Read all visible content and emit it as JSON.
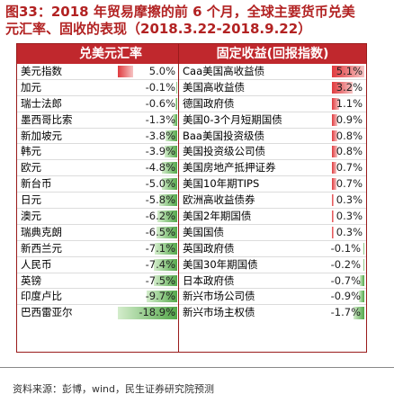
{
  "title": {
    "line1": "图33：2018 年贸易摩擦的前 6 个月，全球主要货币兑美",
    "line2": "元汇率、固收的表现（2018.3.22-2018.9.22）"
  },
  "colors": {
    "header": "#c0282d",
    "border": "#9a1b1b",
    "pos_dark": "#e03a3e",
    "pos_light": "#f6c3c3",
    "neg_dark": "#54a84a",
    "neg_light": "#d4edcc"
  },
  "source": "资料来源：彭博，wind，民生证券研究院预测",
  "chart_data": [
    {
      "type": "table",
      "header": "兑美元汇率",
      "unit": "%",
      "rows": [
        {
          "name": "美元指数",
          "value": 5.0,
          "label": "5.0%"
        },
        {
          "name": "加元",
          "value": -0.1,
          "label": "-0.1%"
        },
        {
          "name": "瑞士法郎",
          "value": -0.6,
          "label": "-0.6%"
        },
        {
          "name": "墨西哥比索",
          "value": -1.3,
          "label": "-1.3%"
        },
        {
          "name": "新加坡元",
          "value": -3.8,
          "label": "-3.8%"
        },
        {
          "name": "韩元",
          "value": -3.9,
          "label": "-3.9%"
        },
        {
          "name": "欧元",
          "value": -4.8,
          "label": "-4.8%"
        },
        {
          "name": "新台币",
          "value": -5.0,
          "label": "-5.0%"
        },
        {
          "name": "日元",
          "value": -5.8,
          "label": "-5.8%"
        },
        {
          "name": "澳元",
          "value": -6.2,
          "label": "-6.2%"
        },
        {
          "name": "瑞典克朗",
          "value": -6.5,
          "label": "-6.5%"
        },
        {
          "name": "新西兰元",
          "value": -7.1,
          "label": "-7.1%"
        },
        {
          "name": "人民币",
          "value": -7.4,
          "label": "-7.4%"
        },
        {
          "name": "英镑",
          "value": -7.5,
          "label": "-7.5%"
        },
        {
          "name": "印度卢比",
          "value": -9.7,
          "label": "-9.7%"
        },
        {
          "name": "巴西雷亚尔",
          "value": -18.9,
          "label": "-18.9%"
        }
      ]
    },
    {
      "type": "table",
      "header": "固定收益(回报指数)",
      "unit": "%",
      "rows": [
        {
          "name": "Caa美国高收益债",
          "value": 5.1,
          "label": "5.1%"
        },
        {
          "name": "美国高收益债",
          "value": 3.2,
          "label": "3.2%"
        },
        {
          "name": "德国政府债",
          "value": 1.1,
          "label": "1.1%"
        },
        {
          "name": "美国0-3个月短期国债",
          "value": 0.9,
          "label": "0.9%"
        },
        {
          "name": "Baa美国投资级债",
          "value": 0.8,
          "label": "0.8%"
        },
        {
          "name": "美国投资级公司债",
          "value": 0.8,
          "label": "0.8%"
        },
        {
          "name": "美国房地产抵押证券",
          "value": 0.7,
          "label": "0.7%"
        },
        {
          "name": "美国10年期TIPS",
          "value": 0.7,
          "label": "0.7%"
        },
        {
          "name": "欧洲高收益债券",
          "value": 0.3,
          "label": "0.3%"
        },
        {
          "name": "美国2年期国债",
          "value": 0.3,
          "label": "0.3%"
        },
        {
          "name": "美国国债",
          "value": 0.3,
          "label": "0.3%"
        },
        {
          "name": "英国政府债",
          "value": -0.1,
          "label": "-0.1%"
        },
        {
          "name": "美国30年期国债",
          "value": -0.2,
          "label": "-0.2%"
        },
        {
          "name": "日本政府债",
          "value": -0.7,
          "label": "-0.7%"
        },
        {
          "name": "新兴市场公司债",
          "value": -0.9,
          "label": "-0.9%"
        },
        {
          "name": "新兴市场主权债",
          "value": -1.7,
          "label": "-1.7%"
        }
      ]
    }
  ]
}
